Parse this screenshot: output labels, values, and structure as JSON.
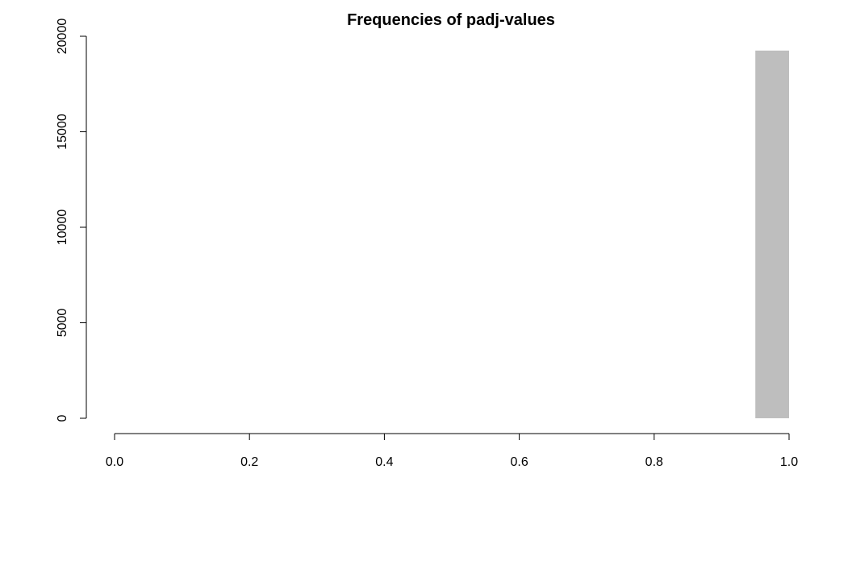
{
  "chart_data": {
    "type": "bar",
    "title": "Frequencies of padj-values",
    "xlabel": "",
    "ylabel": "",
    "bins": [
      {
        "x0": 0.95,
        "x1": 1.0,
        "count": 19250
      }
    ],
    "xlim": [
      0.0,
      1.0
    ],
    "ylim": [
      0,
      20000
    ],
    "x_ticks": [
      "0.0",
      "0.2",
      "0.4",
      "0.6",
      "0.8",
      "1.0"
    ],
    "y_ticks": [
      "0",
      "5000",
      "10000",
      "15000",
      "20000"
    ],
    "grid": false,
    "colors": {
      "bar_fill": "#bebebe",
      "axis": "#000000"
    }
  }
}
